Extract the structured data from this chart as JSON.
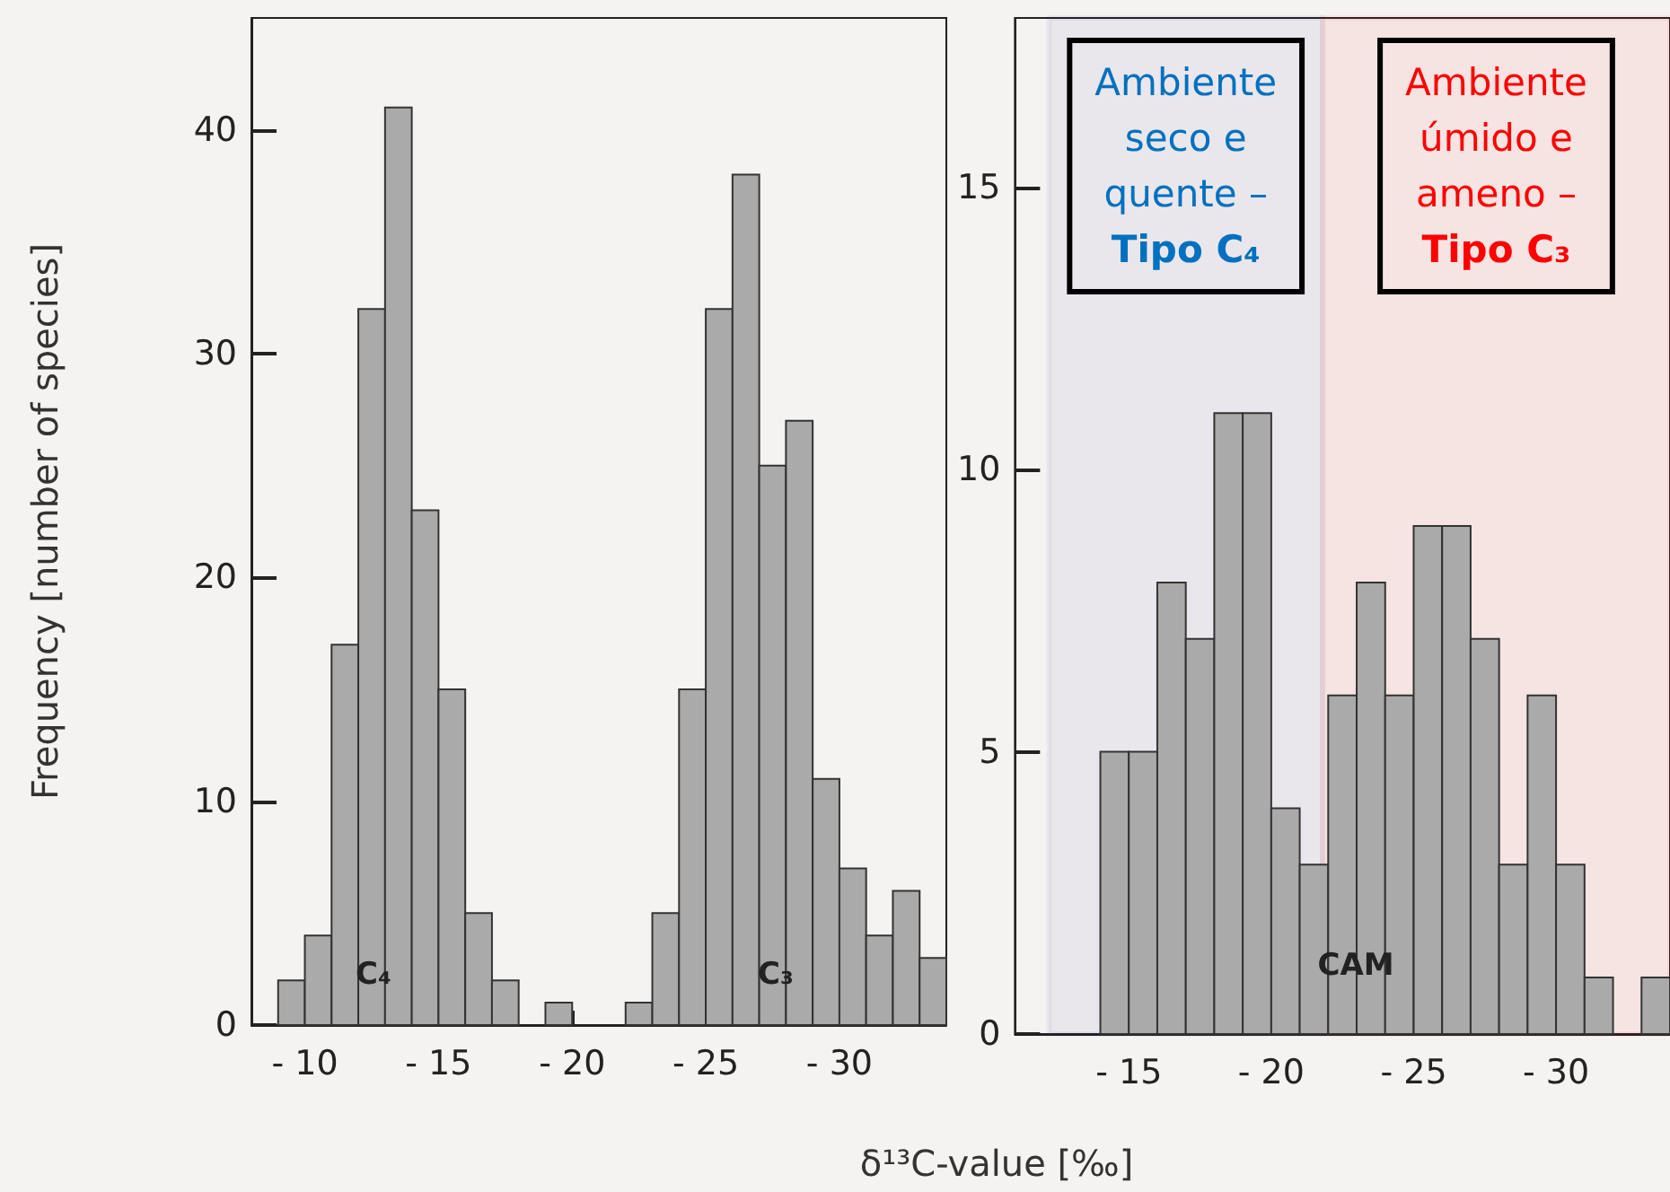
{
  "chart_data": [
    {
      "type": "histogram",
      "ylabel": "Frequency [number of species]",
      "xlabel": "δ¹³C-value [‰]",
      "color": "#aaaaaa",
      "bins": [
        -9,
        -10,
        -11,
        -12,
        -13,
        -14,
        -15,
        -16,
        -17,
        -18,
        -19,
        -20,
        -21,
        -22,
        -23,
        -24,
        -25,
        -26,
        -27,
        -28,
        -29,
        -30,
        -31,
        -32,
        -33,
        -34
      ],
      "values": [
        2,
        4,
        17,
        32,
        41,
        23,
        15,
        5,
        2,
        0,
        1,
        0,
        0,
        1,
        5,
        15,
        32,
        38,
        25,
        27,
        11,
        7,
        4,
        6,
        3
      ],
      "xlim": [
        -8,
        -34
      ],
      "xticks": [
        -10,
        -15,
        -20,
        -25,
        -30
      ],
      "ylim": [
        0,
        45
      ],
      "yticks": [
        0,
        10,
        20,
        30,
        40
      ],
      "grid": false,
      "annotations": [
        "C₄",
        "C₃"
      ]
    },
    {
      "type": "histogram",
      "color": "#aaaaaa",
      "bins": [
        -14,
        -15,
        -16,
        -17,
        -18,
        -19,
        -20,
        -21,
        -22,
        -23,
        -24,
        -25,
        -26,
        -27,
        -28,
        -29,
        -30,
        -31,
        -32,
        -33,
        -34
      ],
      "values": [
        5,
        5,
        8,
        7,
        11,
        11,
        4,
        3,
        6,
        8,
        6,
        9,
        9,
        7,
        3,
        6,
        3,
        1,
        0,
        1
      ],
      "xlim": [
        -11,
        -34
      ],
      "xticks": [
        -15,
        -20,
        -25,
        -30
      ],
      "ylim": [
        0,
        18
      ],
      "yticks": [
        0,
        5,
        10,
        15
      ],
      "grid": false,
      "annotations": [
        "CAM"
      ],
      "bands": [
        {
          "axis": "x",
          "from": -12.2,
          "to": -21.8,
          "label": "Ambiente\nseco e\nquente –\nTipo C₄",
          "color": "#2e3192"
        },
        {
          "axis": "x",
          "from": -21.8,
          "to": -34,
          "label": "Ambiente\númido e\nameno –\nTipo C₃",
          "color": "#ff0000"
        }
      ]
    }
  ]
}
